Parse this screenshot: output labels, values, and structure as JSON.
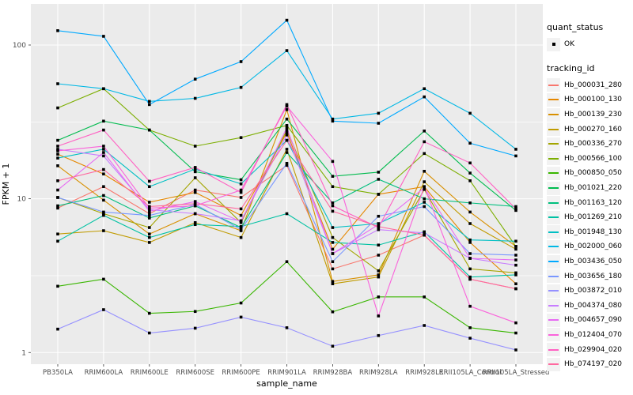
{
  "legend": {
    "quant_status_title": "quant_status",
    "quant_status_value": "OK",
    "tracking_id_title": "tracking_id"
  },
  "chart_data": {
    "type": "line",
    "title": "",
    "xlabel": "sample_name",
    "ylabel": "FPKM + 1",
    "y_scale": "log10",
    "ylim": [
      0.84,
      185
    ],
    "y_ticks": [
      1,
      10,
      100
    ],
    "y_minor_ticks": [
      3.1623,
      31.623
    ],
    "grid": true,
    "legend_position": "right",
    "panel_bg": "#EBEBEB",
    "gridline_color": "#FFFFFF",
    "point_color": "#000000",
    "axis_text_color": "#4D4D4D",
    "categories": [
      "PB350LA",
      "RRIM600LA",
      "RRIM600LE",
      "RRIM600SE",
      "RRIM600PE",
      "RRIM901LA",
      "RRIM928BA",
      "RRIM928LA",
      "RRIM928LE",
      "RRII105LA_Control",
      "RRII105LA_Stressed"
    ],
    "series": [
      {
        "name": "Hb_000031_280",
        "color": "#F8766D",
        "values": [
          8.7,
          12.0,
          8.0,
          11.4,
          10.2,
          16.5,
          3.5,
          4.3,
          5.8,
          3.0,
          2.6
        ]
      },
      {
        "name": "Hb_000100_130",
        "color": "#E58700",
        "values": [
          19.5,
          14.5,
          9.5,
          11.0,
          7.8,
          27.0,
          4.7,
          10.7,
          12.0,
          5.2,
          2.8
        ]
      },
      {
        "name": "Hb_000139_230",
        "color": "#D89000",
        "values": [
          16.4,
          9.8,
          5.9,
          8.0,
          6.2,
          38.0,
          2.9,
          3.2,
          15.1,
          8.2,
          4.9
        ]
      },
      {
        "name": "Hb_000270_160",
        "color": "#C09B00",
        "values": [
          5.9,
          6.2,
          5.2,
          7.0,
          5.6,
          21.0,
          2.8,
          3.1,
          12.9,
          6.9,
          4.7
        ]
      },
      {
        "name": "Hb_000336_270",
        "color": "#A3A500",
        "values": [
          10.2,
          8.0,
          6.5,
          13.7,
          7.0,
          28.0,
          5.6,
          3.4,
          11.5,
          3.5,
          3.3
        ]
      },
      {
        "name": "Hb_000566_100",
        "color": "#7CAE00",
        "values": [
          39.0,
          52.0,
          28.0,
          22.0,
          25.0,
          30.0,
          12.0,
          10.7,
          19.7,
          13.1,
          4.9
        ]
      },
      {
        "name": "Hb_000850_050",
        "color": "#39B600",
        "values": [
          2.7,
          3.0,
          1.8,
          1.85,
          2.1,
          3.9,
          1.84,
          2.3,
          2.3,
          1.45,
          1.34
        ]
      },
      {
        "name": "Hb_001021_220",
        "color": "#00BB4E",
        "values": [
          24.0,
          32.0,
          28.0,
          15.0,
          13.3,
          33.0,
          14.0,
          14.9,
          27.6,
          14.7,
          8.4
        ]
      },
      {
        "name": "Hb_001163_120",
        "color": "#00BF7D",
        "values": [
          9.0,
          10.5,
          7.5,
          9.0,
          6.5,
          20.0,
          9.4,
          13.4,
          10.0,
          9.4,
          8.9
        ]
      },
      {
        "name": "Hb_001269_210",
        "color": "#00C1A3",
        "values": [
          5.3,
          7.8,
          5.6,
          6.8,
          6.6,
          8.0,
          5.2,
          5.0,
          6.1,
          3.1,
          3.2
        ]
      },
      {
        "name": "Hb_001948_130",
        "color": "#00BFC4",
        "values": [
          18.4,
          21.0,
          12.0,
          15.6,
          12.5,
          24.0,
          6.5,
          6.9,
          9.5,
          5.4,
          5.3
        ]
      },
      {
        "name": "Hb_002000_060",
        "color": "#00B8E5",
        "values": [
          56.0,
          52.0,
          43.0,
          45.0,
          53.0,
          92.0,
          33.0,
          36.0,
          52.0,
          36.0,
          21.0
        ]
      },
      {
        "name": "Hb_003436_050",
        "color": "#00A9FF",
        "values": [
          124.0,
          114.0,
          41.0,
          60.0,
          78.0,
          145.0,
          32.0,
          31.0,
          46.0,
          23.0,
          19.0
        ]
      },
      {
        "name": "Hb_003656_180",
        "color": "#7997FF",
        "values": [
          10.2,
          8.2,
          7.8,
          9.2,
          6.3,
          17.0,
          3.9,
          7.7,
          8.9,
          4.4,
          4.3
        ]
      },
      {
        "name": "Hb_003872_010",
        "color": "#9590FF",
        "values": [
          1.42,
          1.9,
          1.34,
          1.44,
          1.7,
          1.45,
          1.1,
          1.29,
          1.5,
          1.24,
          1.04
        ]
      },
      {
        "name": "Hb_004374_080",
        "color": "#C77CFF",
        "values": [
          21.0,
          19.0,
          8.5,
          8.0,
          7.2,
          26.0,
          4.4,
          6.3,
          6.0,
          4.1,
          3.7
        ]
      },
      {
        "name": "Hb_004657_090",
        "color": "#E76BF3",
        "values": [
          11.4,
          20.0,
          8.3,
          9.6,
          7.1,
          29.0,
          4.4,
          6.8,
          11.8,
          4.1,
          4.0
        ]
      },
      {
        "name": "Hb_012404_070",
        "color": "#FA62DB",
        "values": [
          20.5,
          22.0,
          8.7,
          9.0,
          11.4,
          40.0,
          17.5,
          1.73,
          12.0,
          2.0,
          1.56
        ]
      },
      {
        "name": "Hb_029904_020",
        "color": "#FF61C3",
        "values": [
          22.0,
          28.0,
          13.0,
          16.0,
          11.0,
          41.0,
          9.0,
          6.5,
          23.5,
          17.1,
          8.6
        ]
      },
      {
        "name": "Hb_074197_020",
        "color": "#FF689F",
        "values": [
          13.1,
          15.5,
          8.9,
          9.3,
          8.6,
          24.0,
          8.3,
          6.6,
          5.8,
          3.0,
          2.6
        ]
      }
    ]
  }
}
